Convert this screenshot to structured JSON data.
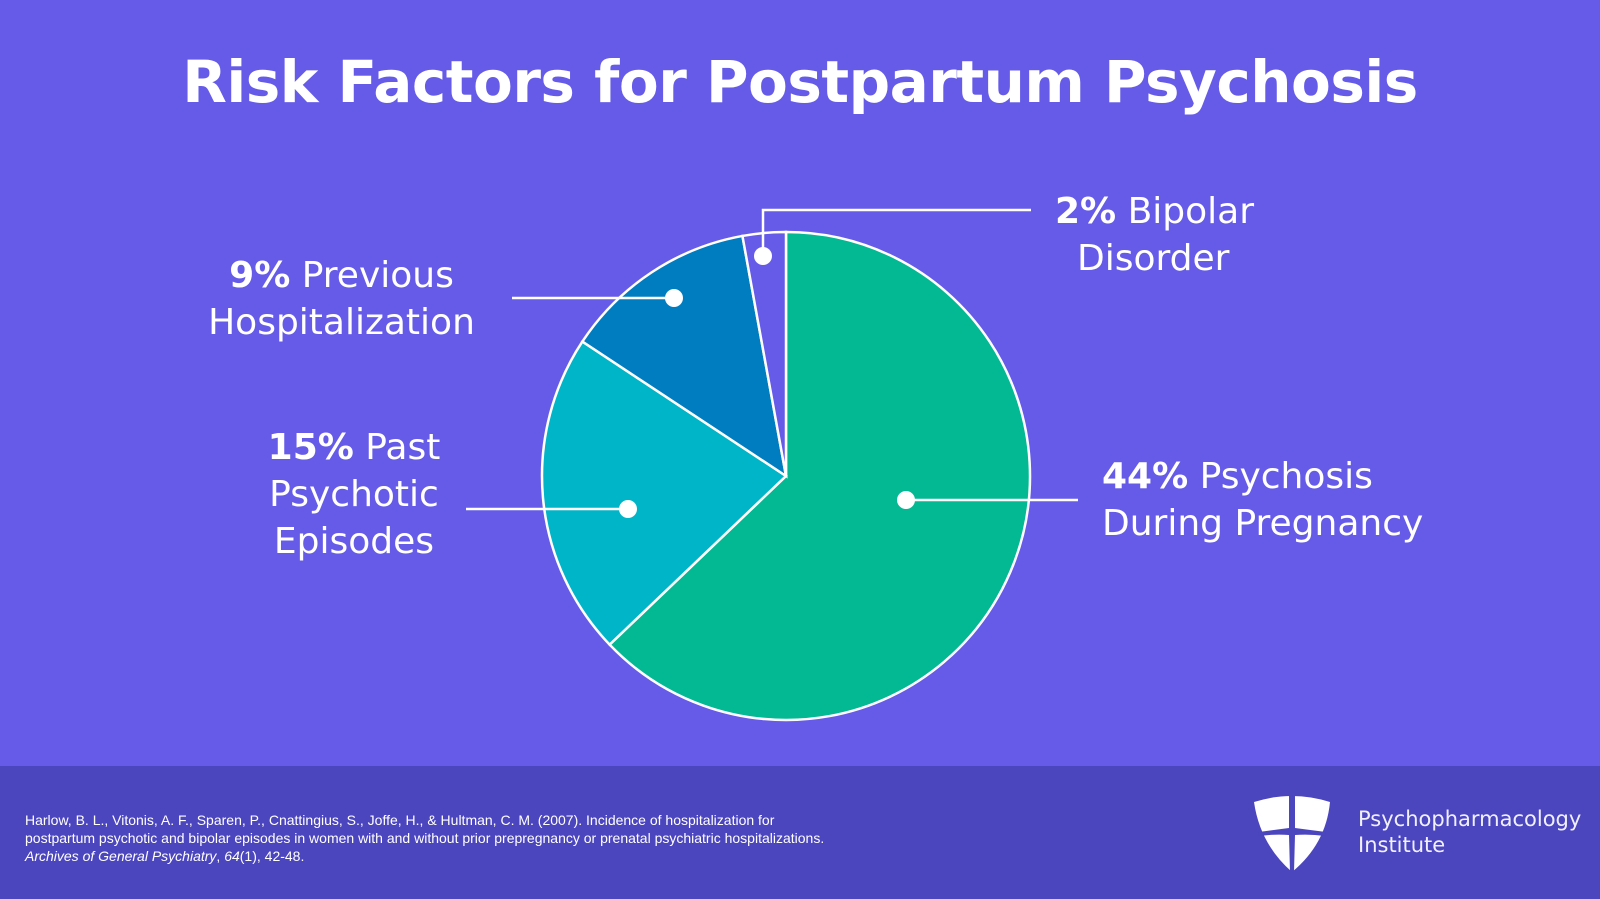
{
  "title": "Risk Factors for Postpartum Psychosis",
  "chart_data": {
    "type": "pie",
    "title": "Risk Factors for Postpartum Psychosis",
    "slices": [
      {
        "label": "Psychosis During Pregnancy",
        "pct_label": "44%",
        "value": 44,
        "color": "#03b994"
      },
      {
        "label": "Past Psychotic Episodes",
        "pct_label": "15%",
        "value": 15,
        "color": "#00b5c8"
      },
      {
        "label": "Previous Hospitalization",
        "pct_label": "9%",
        "value": 9,
        "color": "#007dc0"
      },
      {
        "label": "Bipolar Disorder",
        "pct_label": "2%",
        "value": 2,
        "color": "#655be8"
      }
    ]
  },
  "labels": {
    "bipolar": {
      "pct": "2%",
      "line1": " Bipolar",
      "line2": "Disorder"
    },
    "hosp": {
      "pct": "9%",
      "line1": " Previous",
      "line2": "Hospitalization"
    },
    "past": {
      "pct": "15%",
      "line1": " Past",
      "line2": "Psychotic",
      "line3": "Episodes"
    },
    "preg": {
      "pct": "44%",
      "line1": " Psychosis",
      "line2": "During Pregnancy"
    }
  },
  "footer": {
    "citation_pre": "Harlow, B. L., Vitonis, A. F., Sparen, P., Cnattingius, S., Joffe, H., & Hultman, C. M. (2007). Incidence of hospitalization for postpartum psychotic and bipolar episodes in women with and without prior prepregnancy or prenatal psychiatric hospitalizations. ",
    "journal": "Archives of General Psychiatry",
    "sep": ", ",
    "volume": "64",
    "rest": "(1), 42-48.",
    "brand_line1": "Psychopharmacology",
    "brand_line2": "Institute"
  }
}
